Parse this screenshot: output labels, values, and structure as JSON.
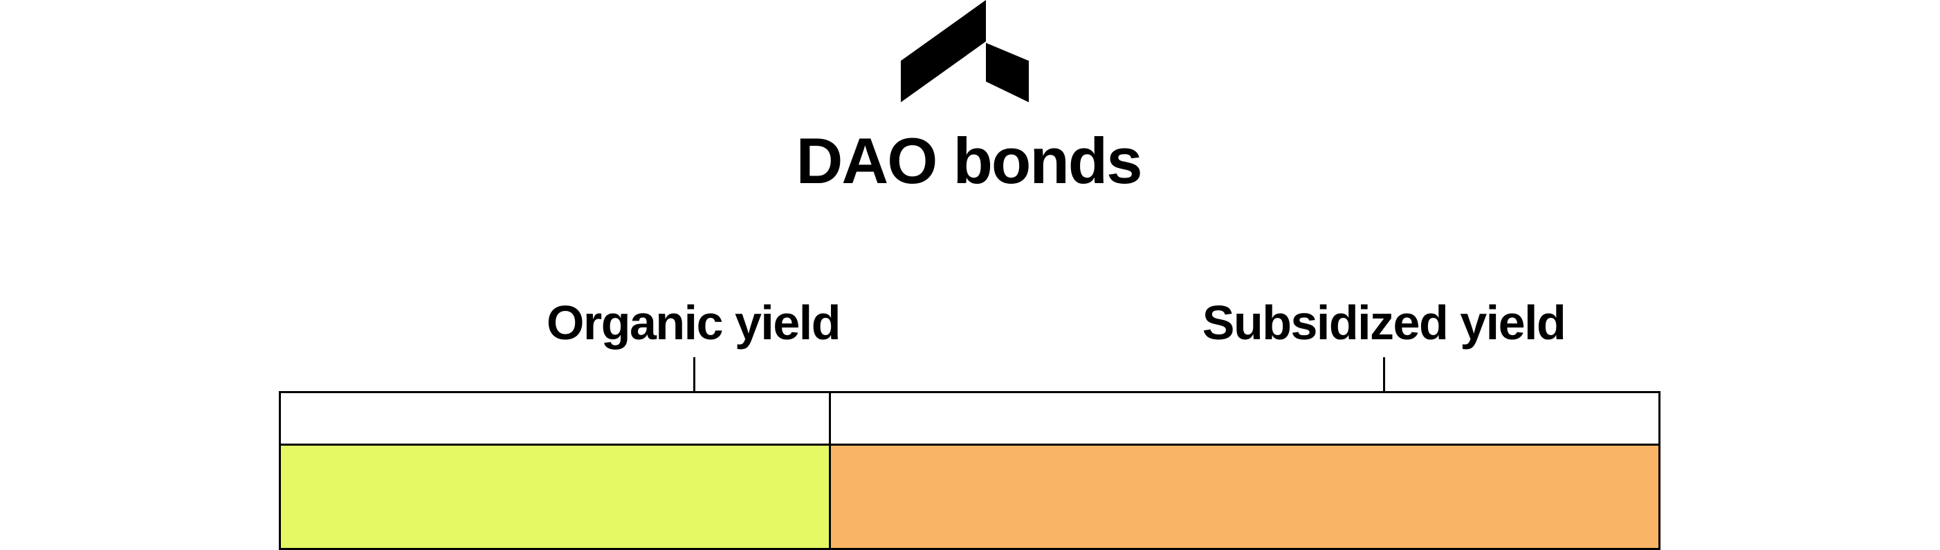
{
  "title": "DAO bonds",
  "logo_icon": "protocol-logo-icon",
  "segments": [
    {
      "label": "Organic yield",
      "color": "#e5f965"
    },
    {
      "label": "Subsidized yield",
      "color": "#f9b565"
    }
  ]
}
